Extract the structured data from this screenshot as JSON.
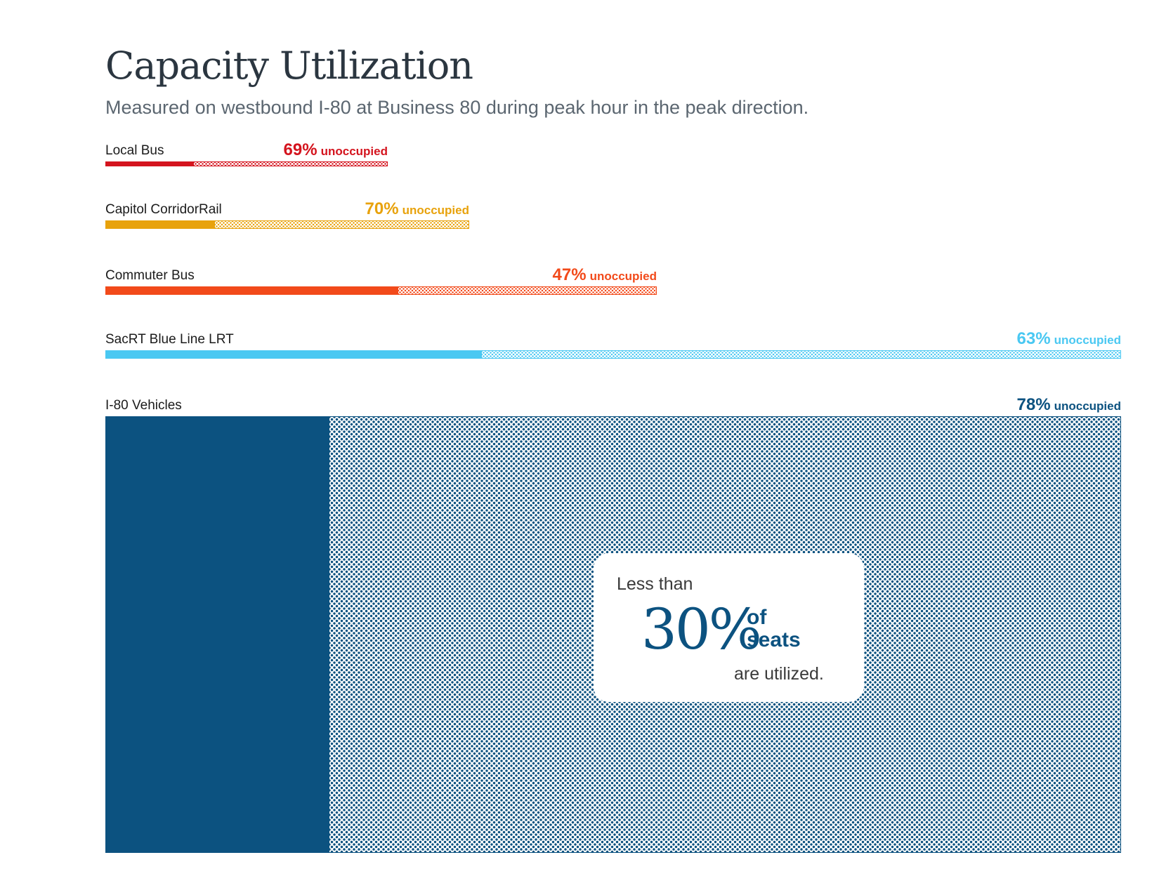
{
  "title": "Capacity Utilization",
  "subtitle": "Measured on westbound I-80 at Business 80 during peak hour in the peak direction.",
  "chart_data": {
    "type": "bar",
    "orientation": "horizontal",
    "grid": false,
    "value_suffix": "%",
    "unoccupied_word": "unoccupied",
    "categories": [
      "Local Bus",
      "Capitol CorridorRail",
      "Commuter Bus",
      "SacRT Blue Line LRT",
      "I-80 Vehicles"
    ],
    "series": [
      {
        "values": [
          69,
          70,
          47,
          63,
          78
        ]
      }
    ],
    "colors": [
      "#d4141e",
      "#e8a20c",
      "#f24a1a",
      "#4ac8f2",
      "#0c5280"
    ]
  },
  "callout": {
    "lead": "Less than",
    "big": "30%",
    "of_line1": "of",
    "of_line2": "seats",
    "tail": "are utilized."
  }
}
